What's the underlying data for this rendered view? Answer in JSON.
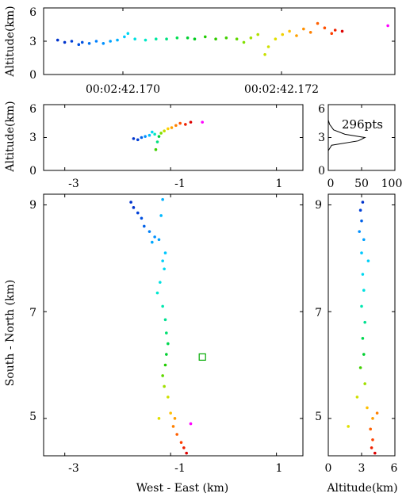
{
  "chart_data": [
    {
      "id": "timeline",
      "type": "scatter",
      "ylabel": "Altitude(km)",
      "ylim": [
        0,
        6
      ],
      "yticks": [
        "0",
        "3",
        "6"
      ],
      "xticks": [
        "00:02:42.170",
        "00:02:42.172"
      ],
      "points": [
        {
          "t": 0.04,
          "z": 3.1,
          "c": "#0033cc"
        },
        {
          "t": 0.06,
          "z": 2.9,
          "c": "#0033cc"
        },
        {
          "t": 0.08,
          "z": 3.0,
          "c": "#0040d8"
        },
        {
          "t": 0.1,
          "z": 2.7,
          "c": "#0050e0"
        },
        {
          "t": 0.11,
          "z": 2.9,
          "c": "#0050e0"
        },
        {
          "t": 0.13,
          "z": 2.8,
          "c": "#0070f0"
        },
        {
          "t": 0.15,
          "z": 3.0,
          "c": "#0080ff"
        },
        {
          "t": 0.17,
          "z": 2.8,
          "c": "#0090ff"
        },
        {
          "t": 0.19,
          "z": 3.0,
          "c": "#00a0ff"
        },
        {
          "t": 0.21,
          "z": 3.1,
          "c": "#00b0ff"
        },
        {
          "t": 0.23,
          "z": 3.4,
          "c": "#00c8ff"
        },
        {
          "t": 0.24,
          "z": 3.7,
          "c": "#00d8f0"
        },
        {
          "t": 0.26,
          "z": 3.2,
          "c": "#00e0e0"
        },
        {
          "t": 0.29,
          "z": 3.1,
          "c": "#00e8c8"
        },
        {
          "t": 0.32,
          "z": 3.2,
          "c": "#00e8a0"
        },
        {
          "t": 0.35,
          "z": 3.2,
          "c": "#00e080"
        },
        {
          "t": 0.38,
          "z": 3.3,
          "c": "#00e050"
        },
        {
          "t": 0.41,
          "z": 3.3,
          "c": "#00d030"
        },
        {
          "t": 0.43,
          "z": 3.2,
          "c": "#00cc20"
        },
        {
          "t": 0.46,
          "z": 3.4,
          "c": "#20cc00"
        },
        {
          "t": 0.49,
          "z": 3.2,
          "c": "#30cc00"
        },
        {
          "t": 0.52,
          "z": 3.3,
          "c": "#40d000"
        },
        {
          "t": 0.55,
          "z": 3.2,
          "c": "#60d800"
        },
        {
          "t": 0.57,
          "z": 2.9,
          "c": "#80e000"
        },
        {
          "t": 0.59,
          "z": 3.3,
          "c": "#a0e000"
        },
        {
          "t": 0.61,
          "z": 3.6,
          "c": "#b0e000"
        },
        {
          "t": 0.63,
          "z": 1.8,
          "c": "#c8e000"
        },
        {
          "t": 0.64,
          "z": 2.5,
          "c": "#d0e000"
        },
        {
          "t": 0.66,
          "z": 3.2,
          "c": "#e0e000"
        },
        {
          "t": 0.68,
          "z": 3.6,
          "c": "#f0d000"
        },
        {
          "t": 0.7,
          "z": 3.9,
          "c": "#ffc000"
        },
        {
          "t": 0.72,
          "z": 3.5,
          "c": "#ffa000"
        },
        {
          "t": 0.74,
          "z": 4.1,
          "c": "#ff9000"
        },
        {
          "t": 0.76,
          "z": 3.8,
          "c": "#ff8000"
        },
        {
          "t": 0.78,
          "z": 4.6,
          "c": "#ff6000"
        },
        {
          "t": 0.8,
          "z": 4.2,
          "c": "#ff5000"
        },
        {
          "t": 0.82,
          "z": 3.7,
          "c": "#ff4000"
        },
        {
          "t": 0.83,
          "z": 4.0,
          "c": "#ee2200"
        },
        {
          "t": 0.85,
          "z": 3.9,
          "c": "#dd0000"
        },
        {
          "t": 0.98,
          "z": 4.4,
          "c": "#ff00ff"
        }
      ]
    },
    {
      "id": "we-alt",
      "type": "scatter",
      "ylabel": "Altitude(km)",
      "xlim": [
        -3.4,
        1.5
      ],
      "ylim": [
        0,
        6
      ],
      "xticks": [
        "-3",
        "-1",
        "1"
      ],
      "yticks": [
        "0",
        "3",
        "6"
      ],
      "points": [
        {
          "x": -1.7,
          "z": 2.9,
          "c": "#0033cc"
        },
        {
          "x": -1.62,
          "z": 2.8,
          "c": "#0040d8"
        },
        {
          "x": -1.55,
          "z": 3.0,
          "c": "#0060e8"
        },
        {
          "x": -1.48,
          "z": 3.1,
          "c": "#0090ff"
        },
        {
          "x": -1.4,
          "z": 3.2,
          "c": "#00c0ff"
        },
        {
          "x": -1.35,
          "z": 3.5,
          "c": "#00d8f0"
        },
        {
          "x": -1.3,
          "z": 3.3,
          "c": "#00e8c0"
        },
        {
          "x": -1.25,
          "z": 2.6,
          "c": "#00e080"
        },
        {
          "x": -1.22,
          "z": 3.1,
          "c": "#00d040"
        },
        {
          "x": -1.28,
          "z": 1.9,
          "c": "#40d000"
        },
        {
          "x": -1.18,
          "z": 3.4,
          "c": "#80e000"
        },
        {
          "x": -1.12,
          "z": 3.6,
          "c": "#c0e000"
        },
        {
          "x": -1.05,
          "z": 3.8,
          "c": "#ffd000"
        },
        {
          "x": -0.98,
          "z": 3.9,
          "c": "#ffa000"
        },
        {
          "x": -0.9,
          "z": 4.1,
          "c": "#ff8000"
        },
        {
          "x": -0.82,
          "z": 4.3,
          "c": "#ff5000"
        },
        {
          "x": -0.72,
          "z": 4.2,
          "c": "#ee2000"
        },
        {
          "x": -0.62,
          "z": 4.4,
          "c": "#dd0000"
        },
        {
          "x": -0.4,
          "z": 4.4,
          "c": "#ff00ff"
        }
      ]
    },
    {
      "id": "histogram",
      "type": "area",
      "annotation": "296pts",
      "xlim": [
        0,
        100
      ],
      "ylim": [
        0,
        6
      ],
      "xticks": [
        "0",
        "50",
        "100"
      ],
      "yticks": [
        "0",
        "3",
        "6"
      ],
      "profile": [
        {
          "z": 0.0,
          "n": 0
        },
        {
          "z": 1.8,
          "n": 0
        },
        {
          "z": 2.3,
          "n": 5
        },
        {
          "z": 2.7,
          "n": 45
        },
        {
          "z": 3.0,
          "n": 55
        },
        {
          "z": 3.3,
          "n": 25
        },
        {
          "z": 3.7,
          "n": 8
        },
        {
          "z": 4.2,
          "n": 2
        },
        {
          "z": 4.6,
          "n": 0
        }
      ]
    },
    {
      "id": "plan-view",
      "type": "scatter",
      "xlabel": "West - East (km)",
      "ylabel": "South - North (km)",
      "xlim": [
        -3.4,
        1.5
      ],
      "ylim": [
        4.3,
        9.2
      ],
      "xticks": [
        "-3",
        "-1",
        "1"
      ],
      "yticks": [
        "5",
        "7",
        "9"
      ],
      "station": {
        "x": -0.4,
        "y": 6.15,
        "color": "#00aa00"
      },
      "points": [
        {
          "x": -1.75,
          "y": 9.05,
          "c": "#0033cc"
        },
        {
          "x": -1.7,
          "y": 8.95,
          "c": "#0033cc"
        },
        {
          "x": -1.62,
          "y": 8.85,
          "c": "#0040d8"
        },
        {
          "x": -1.55,
          "y": 8.75,
          "c": "#0050e0"
        },
        {
          "x": -1.5,
          "y": 8.6,
          "c": "#0060e8"
        },
        {
          "x": -1.4,
          "y": 8.5,
          "c": "#0080f8"
        },
        {
          "x": -1.3,
          "y": 8.4,
          "c": "#0090ff"
        },
        {
          "x": -1.22,
          "y": 8.35,
          "c": "#00a0ff"
        },
        {
          "x": -1.35,
          "y": 8.3,
          "c": "#00a8ff"
        },
        {
          "x": -1.15,
          "y": 9.1,
          "c": "#00b0ff"
        },
        {
          "x": -1.18,
          "y": 8.8,
          "c": "#00b8ff"
        },
        {
          "x": -1.1,
          "y": 8.1,
          "c": "#00c8ff"
        },
        {
          "x": -1.15,
          "y": 7.95,
          "c": "#00d0f8"
        },
        {
          "x": -1.12,
          "y": 7.8,
          "c": "#00d8f0"
        },
        {
          "x": -1.2,
          "y": 7.55,
          "c": "#00e0e0"
        },
        {
          "x": -1.25,
          "y": 7.35,
          "c": "#00e8d0"
        },
        {
          "x": -1.15,
          "y": 7.1,
          "c": "#00e8b0"
        },
        {
          "x": -1.1,
          "y": 6.85,
          "c": "#00e090"
        },
        {
          "x": -1.08,
          "y": 6.6,
          "c": "#00e070"
        },
        {
          "x": -1.05,
          "y": 6.4,
          "c": "#00d850"
        },
        {
          "x": -1.08,
          "y": 6.2,
          "c": "#00d030"
        },
        {
          "x": -1.1,
          "y": 6.0,
          "c": "#20cc00"
        },
        {
          "x": -1.15,
          "y": 5.8,
          "c": "#60d800"
        },
        {
          "x": -1.12,
          "y": 5.6,
          "c": "#a0e000"
        },
        {
          "x": -1.05,
          "y": 5.4,
          "c": "#d0e000"
        },
        {
          "x": -1.22,
          "y": 5.0,
          "c": "#e0e000"
        },
        {
          "x": -1.0,
          "y": 5.1,
          "c": "#ffc000"
        },
        {
          "x": -0.92,
          "y": 5.0,
          "c": "#ffa000"
        },
        {
          "x": -0.95,
          "y": 4.85,
          "c": "#ff8000"
        },
        {
          "x": -0.88,
          "y": 4.7,
          "c": "#ff6000"
        },
        {
          "x": -0.8,
          "y": 4.55,
          "c": "#ff4000"
        },
        {
          "x": -0.75,
          "y": 4.45,
          "c": "#ee2000"
        },
        {
          "x": -0.7,
          "y": 4.35,
          "c": "#dd0000"
        },
        {
          "x": -0.62,
          "y": 4.9,
          "c": "#ff00ff"
        }
      ]
    },
    {
      "id": "alt-north",
      "type": "scatter",
      "xlabel": "Altitude(km)",
      "xlim": [
        0,
        6
      ],
      "ylim": [
        4.3,
        9.2
      ],
      "xticks": [
        "0",
        "3",
        "6"
      ],
      "yticks": [
        "5",
        "7",
        "9"
      ],
      "points": [
        {
          "z": 3.1,
          "y": 9.05,
          "c": "#0033cc"
        },
        {
          "z": 2.9,
          "y": 8.9,
          "c": "#0040d8"
        },
        {
          "z": 3.0,
          "y": 8.7,
          "c": "#0060e8"
        },
        {
          "z": 2.8,
          "y": 8.5,
          "c": "#0090ff"
        },
        {
          "z": 3.2,
          "y": 8.35,
          "c": "#00a0ff"
        },
        {
          "z": 3.0,
          "y": 8.1,
          "c": "#00c8ff"
        },
        {
          "z": 3.6,
          "y": 7.95,
          "c": "#00d0f8"
        },
        {
          "z": 3.1,
          "y": 7.7,
          "c": "#00d8f0"
        },
        {
          "z": 3.2,
          "y": 7.4,
          "c": "#00e0e0"
        },
        {
          "z": 3.0,
          "y": 7.1,
          "c": "#00e8b0"
        },
        {
          "z": 3.3,
          "y": 6.8,
          "c": "#00e090"
        },
        {
          "z": 3.1,
          "y": 6.5,
          "c": "#00d850"
        },
        {
          "z": 3.2,
          "y": 6.2,
          "c": "#00d030"
        },
        {
          "z": 2.9,
          "y": 5.95,
          "c": "#40d000"
        },
        {
          "z": 3.3,
          "y": 5.65,
          "c": "#a0e000"
        },
        {
          "z": 2.6,
          "y": 5.4,
          "c": "#d0e000"
        },
        {
          "z": 1.8,
          "y": 4.85,
          "c": "#e0e000"
        },
        {
          "z": 3.5,
          "y": 5.2,
          "c": "#ffc000"
        },
        {
          "z": 4.0,
          "y": 5.0,
          "c": "#ffa000"
        },
        {
          "z": 4.4,
          "y": 5.1,
          "c": "#ff8000"
        },
        {
          "z": 3.8,
          "y": 4.8,
          "c": "#ff6000"
        },
        {
          "z": 4.0,
          "y": 4.6,
          "c": "#ff4000"
        },
        {
          "z": 3.9,
          "y": 4.45,
          "c": "#ee2000"
        },
        {
          "z": 4.2,
          "y": 4.35,
          "c": "#dd0000"
        }
      ]
    }
  ]
}
